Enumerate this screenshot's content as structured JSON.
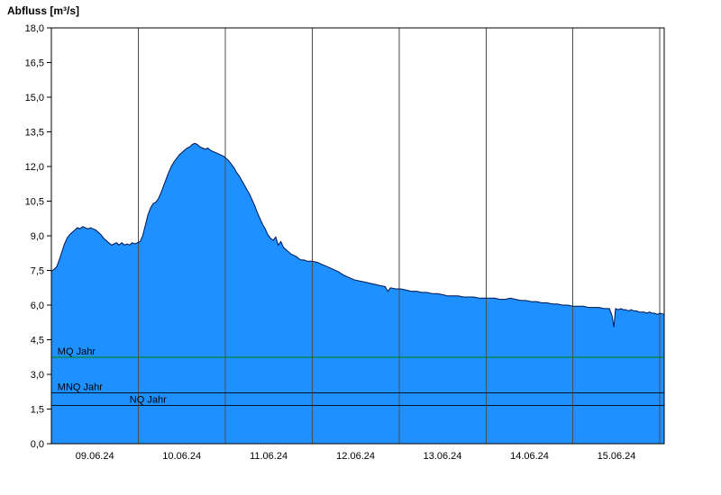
{
  "title": "Abfluss [m³/s]",
  "colors": {
    "area_fill": "#1e90ff",
    "area_outline": "#00134d",
    "grid_line": "#4d4d4d",
    "axis_border": "#000000",
    "mq_line": "#008000",
    "mnq_line": "#001433",
    "nq_line": "#001433",
    "label_text": "#000000"
  },
  "chart_data": {
    "type": "area",
    "title": "Abfluss [m³/s]",
    "xlabel": "",
    "ylabel": "Abfluss [m³/s]",
    "ylim": [
      0,
      18
    ],
    "ytick_step": 1.5,
    "ytick_labels": [
      "0,0",
      "1,5",
      "3,0",
      "4,5",
      "6,0",
      "7,5",
      "9,0",
      "10,5",
      "12,0",
      "13,5",
      "15,0",
      "16,5",
      "18,0"
    ],
    "x_categories": [
      "09.06.24",
      "10.06.24",
      "11.06.24",
      "12.06.24",
      "13.06.24",
      "14.06.24",
      "15.06.24"
    ],
    "x_range_days": [
      0,
      7.05
    ],
    "x_gridlines_days": [
      0,
      1,
      2,
      3,
      4,
      5,
      6,
      7
    ],
    "grid": "vertical-daily",
    "legend": "none",
    "reference_lines": [
      {
        "id": "mq",
        "label": "MQ Jahr",
        "value": 3.74,
        "label_day": 0.07
      },
      {
        "id": "mnq",
        "label": "MNQ Jahr",
        "value": 2.2,
        "label_day": 0.07
      },
      {
        "id": "nq",
        "label": "NQ Jahr",
        "value": 1.65,
        "label_day": 0.9
      }
    ],
    "series": [
      {
        "name": "Abfluss",
        "unit": "m³/s",
        "points": [
          [
            0.0,
            7.45
          ],
          [
            0.03,
            7.55
          ],
          [
            0.06,
            7.65
          ],
          [
            0.09,
            7.95
          ],
          [
            0.12,
            8.3
          ],
          [
            0.15,
            8.65
          ],
          [
            0.18,
            8.9
          ],
          [
            0.21,
            9.05
          ],
          [
            0.24,
            9.15
          ],
          [
            0.27,
            9.25
          ],
          [
            0.3,
            9.35
          ],
          [
            0.33,
            9.3
          ],
          [
            0.36,
            9.4
          ],
          [
            0.39,
            9.35
          ],
          [
            0.42,
            9.3
          ],
          [
            0.45,
            9.35
          ],
          [
            0.48,
            9.3
          ],
          [
            0.51,
            9.25
          ],
          [
            0.54,
            9.15
          ],
          [
            0.57,
            9.05
          ],
          [
            0.6,
            8.9
          ],
          [
            0.63,
            8.8
          ],
          [
            0.66,
            8.7
          ],
          [
            0.69,
            8.6
          ],
          [
            0.72,
            8.65
          ],
          [
            0.75,
            8.7
          ],
          [
            0.78,
            8.6
          ],
          [
            0.81,
            8.7
          ],
          [
            0.84,
            8.6
          ],
          [
            0.87,
            8.65
          ],
          [
            0.9,
            8.6
          ],
          [
            0.93,
            8.7
          ],
          [
            0.96,
            8.65
          ],
          [
            0.99,
            8.7
          ],
          [
            1.02,
            8.75
          ],
          [
            1.05,
            9.0
          ],
          [
            1.08,
            9.45
          ],
          [
            1.11,
            9.9
          ],
          [
            1.14,
            10.2
          ],
          [
            1.17,
            10.4
          ],
          [
            1.2,
            10.45
          ],
          [
            1.23,
            10.6
          ],
          [
            1.26,
            10.85
          ],
          [
            1.29,
            11.15
          ],
          [
            1.32,
            11.45
          ],
          [
            1.35,
            11.75
          ],
          [
            1.38,
            12.0
          ],
          [
            1.41,
            12.2
          ],
          [
            1.44,
            12.35
          ],
          [
            1.47,
            12.5
          ],
          [
            1.5,
            12.6
          ],
          [
            1.53,
            12.7
          ],
          [
            1.56,
            12.8
          ],
          [
            1.59,
            12.85
          ],
          [
            1.62,
            12.95
          ],
          [
            1.65,
            13.0
          ],
          [
            1.68,
            12.95
          ],
          [
            1.71,
            12.85
          ],
          [
            1.74,
            12.8
          ],
          [
            1.77,
            12.75
          ],
          [
            1.8,
            12.8
          ],
          [
            1.83,
            12.7
          ],
          [
            1.86,
            12.65
          ],
          [
            1.89,
            12.6
          ],
          [
            1.92,
            12.55
          ],
          [
            1.95,
            12.5
          ],
          [
            1.98,
            12.45
          ],
          [
            2.01,
            12.35
          ],
          [
            2.04,
            12.25
          ],
          [
            2.07,
            12.1
          ],
          [
            2.1,
            11.95
          ],
          [
            2.13,
            11.75
          ],
          [
            2.16,
            11.6
          ],
          [
            2.19,
            11.4
          ],
          [
            2.22,
            11.2
          ],
          [
            2.25,
            11.0
          ],
          [
            2.28,
            10.8
          ],
          [
            2.31,
            10.55
          ],
          [
            2.34,
            10.3
          ],
          [
            2.37,
            10.0
          ],
          [
            2.4,
            9.75
          ],
          [
            2.43,
            9.5
          ],
          [
            2.46,
            9.3
          ],
          [
            2.49,
            9.05
          ],
          [
            2.52,
            8.9
          ],
          [
            2.55,
            8.8
          ],
          [
            2.58,
            8.95
          ],
          [
            2.61,
            8.6
          ],
          [
            2.64,
            8.75
          ],
          [
            2.67,
            8.5
          ],
          [
            2.7,
            8.4
          ],
          [
            2.73,
            8.3
          ],
          [
            2.76,
            8.2
          ],
          [
            2.79,
            8.15
          ],
          [
            2.82,
            8.1
          ],
          [
            2.85,
            8.0
          ],
          [
            2.88,
            7.95
          ],
          [
            2.91,
            7.95
          ],
          [
            2.94,
            7.9
          ],
          [
            2.97,
            7.9
          ],
          [
            3.0,
            7.9
          ],
          [
            3.06,
            7.85
          ],
          [
            3.12,
            7.75
          ],
          [
            3.18,
            7.65
          ],
          [
            3.24,
            7.55
          ],
          [
            3.3,
            7.45
          ],
          [
            3.36,
            7.3
          ],
          [
            3.42,
            7.2
          ],
          [
            3.48,
            7.1
          ],
          [
            3.54,
            7.05
          ],
          [
            3.6,
            7.0
          ],
          [
            3.66,
            6.95
          ],
          [
            3.72,
            6.9
          ],
          [
            3.78,
            6.85
          ],
          [
            3.84,
            6.8
          ],
          [
            3.87,
            6.6
          ],
          [
            3.9,
            6.75
          ],
          [
            3.96,
            6.7
          ],
          [
            4.02,
            6.7
          ],
          [
            4.08,
            6.65
          ],
          [
            4.14,
            6.6
          ],
          [
            4.2,
            6.6
          ],
          [
            4.26,
            6.55
          ],
          [
            4.32,
            6.55
          ],
          [
            4.38,
            6.5
          ],
          [
            4.44,
            6.5
          ],
          [
            4.5,
            6.45
          ],
          [
            4.56,
            6.4
          ],
          [
            4.62,
            6.4
          ],
          [
            4.68,
            6.4
          ],
          [
            4.74,
            6.35
          ],
          [
            4.8,
            6.35
          ],
          [
            4.86,
            6.35
          ],
          [
            4.92,
            6.3
          ],
          [
            4.98,
            6.3
          ],
          [
            5.04,
            6.3
          ],
          [
            5.1,
            6.3
          ],
          [
            5.16,
            6.25
          ],
          [
            5.22,
            6.25
          ],
          [
            5.28,
            6.3
          ],
          [
            5.34,
            6.25
          ],
          [
            5.4,
            6.2
          ],
          [
            5.46,
            6.2
          ],
          [
            5.52,
            6.15
          ],
          [
            5.58,
            6.15
          ],
          [
            5.64,
            6.1
          ],
          [
            5.7,
            6.1
          ],
          [
            5.76,
            6.05
          ],
          [
            5.82,
            6.05
          ],
          [
            5.88,
            6.0
          ],
          [
            5.94,
            6.0
          ],
          [
            6.0,
            5.95
          ],
          [
            6.06,
            5.95
          ],
          [
            6.12,
            5.95
          ],
          [
            6.18,
            5.9
          ],
          [
            6.24,
            5.9
          ],
          [
            6.3,
            5.9
          ],
          [
            6.36,
            5.85
          ],
          [
            6.42,
            5.85
          ],
          [
            6.45,
            5.55
          ],
          [
            6.47,
            5.05
          ],
          [
            6.49,
            5.85
          ],
          [
            6.52,
            5.8
          ],
          [
            6.55,
            5.85
          ],
          [
            6.58,
            5.8
          ],
          [
            6.61,
            5.8
          ],
          [
            6.64,
            5.75
          ],
          [
            6.67,
            5.8
          ],
          [
            6.7,
            5.75
          ],
          [
            6.73,
            5.75
          ],
          [
            6.76,
            5.7
          ],
          [
            6.79,
            5.7
          ],
          [
            6.82,
            5.7
          ],
          [
            6.85,
            5.65
          ],
          [
            6.88,
            5.7
          ],
          [
            6.91,
            5.65
          ],
          [
            6.94,
            5.65
          ],
          [
            6.97,
            5.6
          ],
          [
            7.0,
            5.65
          ],
          [
            7.05,
            5.6
          ]
        ]
      }
    ]
  }
}
